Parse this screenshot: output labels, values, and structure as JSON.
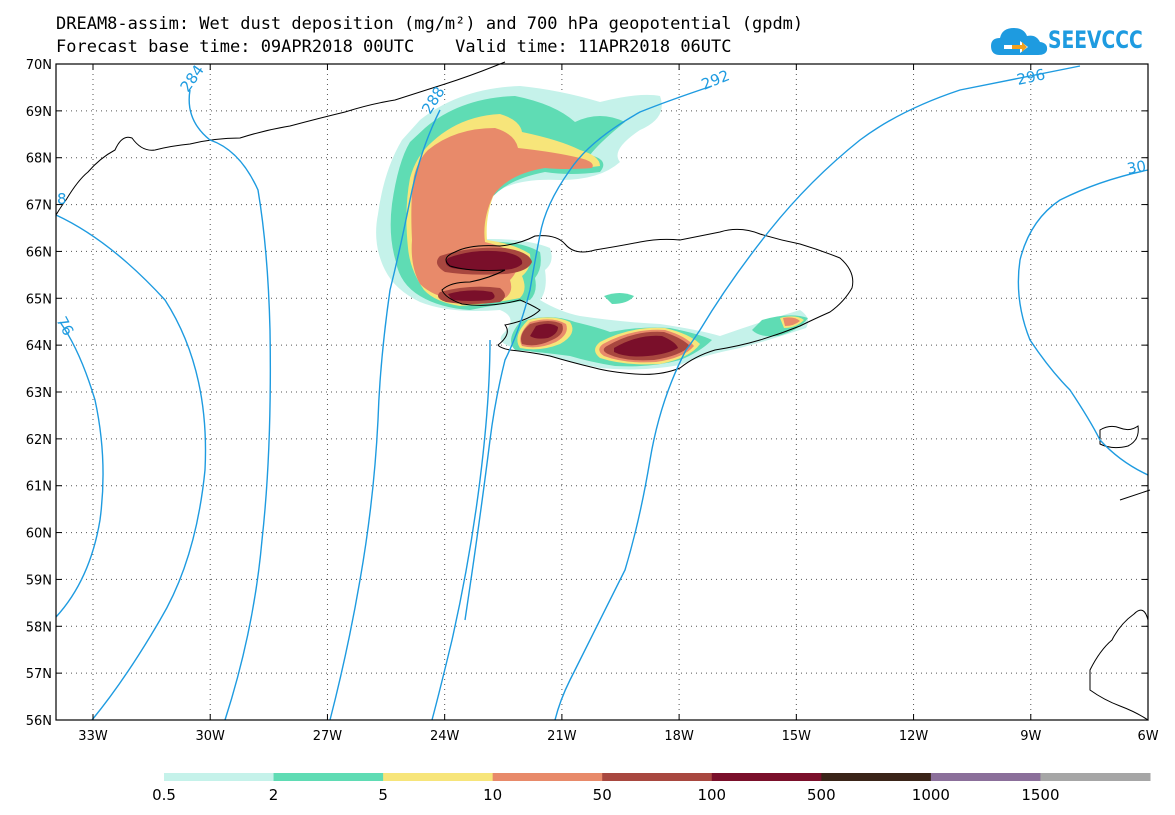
{
  "header": {
    "title_line1": "DREAM8-assim: Wet dust deposition (mg/m²) and 700 hPa geopotential (gpdm)",
    "title_line2": "Forecast base time: 09APR2018 00UTC    Valid time: 11APR2018 06UTC"
  },
  "logo": {
    "text": "SEEVCCC",
    "icon": "cloud-logo-icon",
    "color": "#1e9be0"
  },
  "map": {
    "lat_labels": [
      "70N",
      "69N",
      "68N",
      "67N",
      "66N",
      "65N",
      "64N",
      "63N",
      "62N",
      "61N",
      "60N",
      "59N",
      "58N",
      "57N",
      "56N"
    ],
    "lon_labels": [
      "33W",
      "30W",
      "27W",
      "24W",
      "21W",
      "18W",
      "15W",
      "12W",
      "9W",
      "6W"
    ],
    "contour_labels": [
      "284",
      "288",
      "292",
      "296",
      "30",
      "76",
      "8"
    ],
    "contour_color": "#1e9be0",
    "coastline_color": "#000000"
  },
  "legend": {
    "colors": [
      "#c5f2ea",
      "#5fdcb4",
      "#f7e57a",
      "#e88a6a",
      "#a8473f",
      "#7a0f2a",
      "#3a2418",
      "#8b6f9a",
      "#a6a6a6"
    ],
    "labels": [
      "0.5",
      "2",
      "5",
      "10",
      "50",
      "100",
      "500",
      "1000",
      "1500"
    ],
    "units": "mg/m²"
  }
}
